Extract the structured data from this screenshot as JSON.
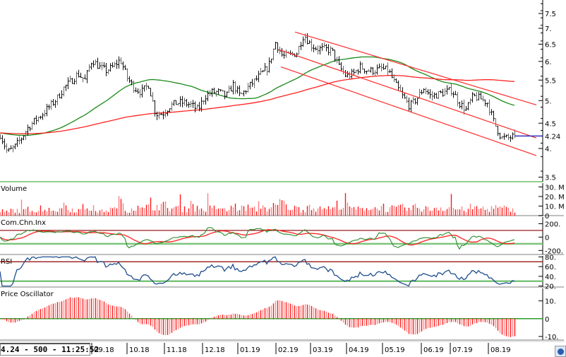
{
  "status_box": "4.24 - 500 - 11:25:52",
  "chart_data": {
    "type": "ohlc",
    "y_scale": "log",
    "price": {
      "close_samples": [
        4.27,
        3.93,
        4.02,
        4.2,
        4.42,
        4.57,
        4.7,
        4.87,
        5.04,
        5.3,
        5.47,
        5.66,
        5.5,
        6.05,
        5.85,
        5.75,
        5.85,
        6.05,
        5.55,
        5.3,
        5.2,
        5.38,
        4.7,
        4.7,
        4.87,
        4.95,
        4.95,
        4.9,
        4.79,
        5.1,
        5.2,
        5.2,
        5.1,
        5.38,
        5.1,
        5.3,
        5.47,
        5.66,
        5.85,
        6.55,
        6.14,
        6.18,
        6.24,
        6.8,
        6.47,
        6.36,
        6.36,
        6.3,
        5.85,
        5.6,
        5.66,
        5.85,
        5.75,
        5.75,
        5.8,
        5.75,
        5.38,
        5.1,
        4.87,
        5.04,
        5.3,
        5.1,
        5.15,
        5.2,
        5.25,
        4.95,
        4.79,
        5.1,
        5.05,
        4.95,
        4.5,
        4.2,
        4.2,
        4.24
      ],
      "y_ticks": [
        "3.5",
        "4.",
        "4.5",
        "5.",
        "5.5",
        "6.",
        "6.5",
        "7.",
        "7.5"
      ],
      "y_tick_values": [
        3.5,
        4,
        4.5,
        5,
        5.5,
        6,
        6.5,
        7,
        7.5
      ],
      "last_price_label": "4.24",
      "last_price": 4.24,
      "ylim": [
        3.4,
        8.0
      ],
      "moving_averages": [
        {
          "period": 50,
          "color": "#1a8a1a"
        },
        {
          "period": 150,
          "color": "#ff2020"
        }
      ],
      "channel_lines": [
        {
          "from": {
            "sample": 41.8,
            "price": 6.88
          },
          "to": {
            "sample": 76,
            "price": 4.9
          }
        },
        {
          "from": {
            "sample": 39.5,
            "price": 6.34
          },
          "to": {
            "sample": 76,
            "price": 4.2
          }
        },
        {
          "from": {
            "sample": 39.8,
            "price": 5.85
          },
          "to": {
            "sample": 76,
            "price": 3.87
          }
        }
      ]
    },
    "x_ticks": [
      "09.18",
      "10.18",
      "11.18",
      "12.18",
      "01.19",
      "02.19",
      "03.19",
      "04.19",
      "05.19",
      "06.19",
      "07.19",
      "08.19"
    ],
    "panels": {
      "volume": {
        "title": "Volume",
        "y_ticks": [
          "30. M",
          "20. M",
          "10. M",
          "0"
        ],
        "y_tick_values": [
          30,
          20,
          10,
          0
        ],
        "ylim": [
          0,
          34
        ],
        "unit": "M",
        "samples": [
          5,
          4,
          6,
          5,
          7,
          6,
          5,
          8,
          6,
          12,
          7,
          6,
          9,
          8,
          5,
          6,
          7,
          15,
          6,
          8,
          7,
          9,
          10,
          11,
          8,
          9,
          7,
          14,
          8,
          7,
          8,
          9,
          6,
          10,
          8,
          9,
          7,
          12,
          8,
          10,
          15,
          9,
          8,
          7,
          11,
          7,
          9,
          8,
          12,
          10,
          8,
          7,
          9,
          8,
          10,
          7,
          8,
          9,
          7,
          9,
          8,
          7,
          9,
          8,
          9,
          7,
          6,
          9,
          8,
          7,
          9,
          8,
          7,
          6
        ]
      },
      "cci": {
        "title": "Com.Chn.Inx",
        "y_ticks": [
          "200.",
          "0",
          "-200."
        ],
        "y_tick_values": [
          200,
          0,
          -200
        ],
        "ylim": [
          -260,
          300
        ],
        "levels": [
          100,
          -100
        ],
        "colors": {
          "line": "#2a8a2a",
          "signal": "#ff2020",
          "upper": "#8b0000",
          "lower": "#7cc47c"
        }
      },
      "rsi": {
        "title": "RSI",
        "y_ticks": [
          "80.",
          "60.",
          "40.",
          "20."
        ],
        "y_tick_values": [
          80,
          60,
          40,
          20
        ],
        "ylim": [
          18,
          82
        ],
        "levels": [
          70,
          30
        ],
        "colors": {
          "line": "#1f4e8c",
          "upper": "#8b0000",
          "lower": "#7cc47c"
        }
      },
      "price_oscillator": {
        "title": "Price Oscillator",
        "y_ticks": [
          "10.",
          "0",
          "-10."
        ],
        "y_tick_values": [
          10,
          0,
          -10
        ],
        "ylim": [
          -12,
          17
        ],
        "colors": {
          "bar": "#ff2020",
          "zero": "#2a9a2a"
        }
      }
    }
  }
}
